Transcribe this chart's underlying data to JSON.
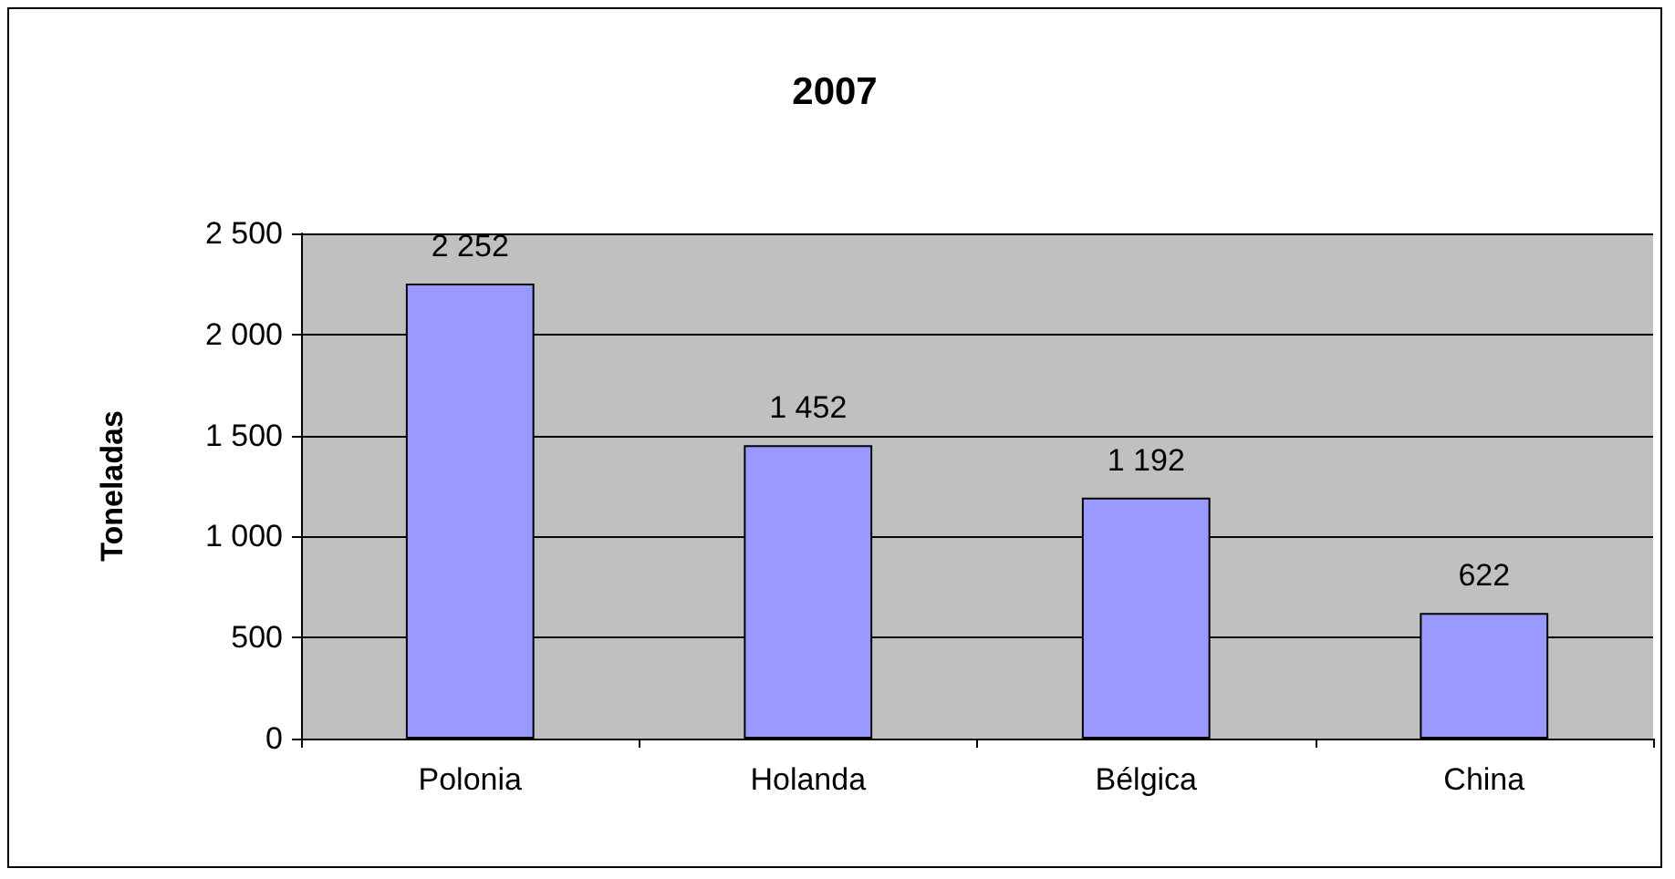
{
  "chart_data": {
    "type": "bar",
    "title": "2007",
    "ylabel": "Toneladas",
    "categories": [
      "Polonia",
      "Holanda",
      "Bélgica",
      "China"
    ],
    "values": [
      2252,
      1452,
      1192,
      622
    ],
    "color": "#9999ff",
    "value_labels": [
      "2 252",
      "1 452",
      "1 192",
      "622"
    ],
    "ylim": [
      0,
      2500
    ],
    "yticks": [
      {
        "value": 0,
        "label": "0"
      },
      {
        "value": 500,
        "label": "500"
      },
      {
        "value": 1000,
        "label": "1 000"
      },
      {
        "value": 1500,
        "label": "1 500"
      },
      {
        "value": 2000,
        "label": "2 000"
      },
      {
        "value": 2500,
        "label": "2 500"
      }
    ],
    "grid": "y"
  }
}
